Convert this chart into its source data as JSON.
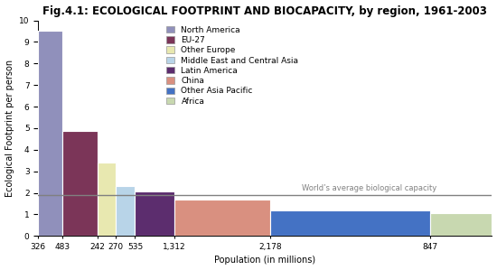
{
  "title": "Fig.4.1: ECOLOGICAL FOOTPRINT AND BIOCAPACITY, by region, 1961-2003",
  "xlabel": "Population (in millions)",
  "ylabel": "Ecological Footprint per person",
  "regions": [
    {
      "name": "North America",
      "population": 326,
      "footprint": 9.5,
      "color": "#9090bb"
    },
    {
      "name": "EU-27",
      "population": 483,
      "footprint": 4.85,
      "color": "#7b3558"
    },
    {
      "name": "Other Europe",
      "population": 242,
      "footprint": 3.4,
      "color": "#e8e8b0"
    },
    {
      "name": "Middle East and Central Asia",
      "population": 270,
      "footprint": 2.3,
      "color": "#b8d4e8"
    },
    {
      "name": "Latin America",
      "population": 535,
      "footprint": 2.05,
      "color": "#5c2d6e"
    },
    {
      "name": "China",
      "population": 1312,
      "footprint": 1.7,
      "color": "#d99080"
    },
    {
      "name": "Other Asia Pacific",
      "population": 2178,
      "footprint": 1.2,
      "color": "#4472c4"
    },
    {
      "name": "Africa",
      "population": 847,
      "footprint": 1.05,
      "color": "#c8d8b0"
    }
  ],
  "avg_bio_capacity": 1.9,
  "avg_bio_label": "World’s average biological capacity",
  "ylim": [
    0,
    10
  ],
  "yticks": [
    0,
    1,
    2,
    3,
    4,
    5,
    6,
    7,
    8,
    9,
    10
  ],
  "background_color": "#ffffff",
  "title_fontsize": 8.5,
  "axis_fontsize": 7,
  "legend_fontsize": 6.5,
  "tick_fontsize": 6.5
}
